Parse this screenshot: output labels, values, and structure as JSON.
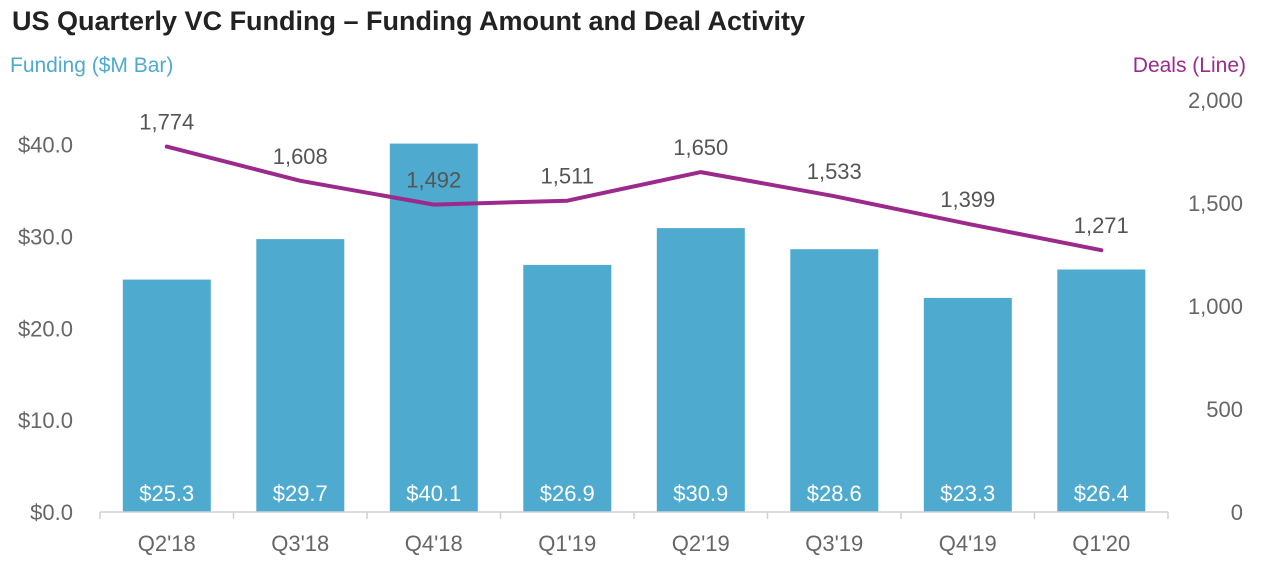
{
  "chart_data": {
    "type": "bar",
    "title": "US Quarterly VC Funding – Funding Amount and Deal Activity",
    "categories": [
      "Q2'18",
      "Q3'18",
      "Q4'18",
      "Q1'19",
      "Q2'19",
      "Q3'19",
      "Q4'19",
      "Q1'20"
    ],
    "series": [
      {
        "name": "Funding",
        "type": "bar",
        "axis": "left",
        "values": [
          25.3,
          29.7,
          40.1,
          26.9,
          30.9,
          28.6,
          23.3,
          26.4
        ],
        "value_labels": [
          "$25.3",
          "$29.7",
          "$40.1",
          "$26.9",
          "$30.9",
          "$28.6",
          "$23.3",
          "$26.4"
        ],
        "color": "#4eaacf"
      },
      {
        "name": "Deals",
        "type": "line",
        "axis": "right",
        "values": [
          1774,
          1608,
          1492,
          1511,
          1650,
          1533,
          1399,
          1271
        ],
        "value_labels": [
          "1,774",
          "1,608",
          "1,492",
          "1,511",
          "1,650",
          "1,533",
          "1,399",
          "1,271"
        ],
        "color": "#9c2a8c"
      }
    ],
    "ylabel_left": "Funding ($M Bar)",
    "ylabel_right": "Deals (Line)",
    "ylim_left": [
      0,
      45
    ],
    "ylim_right": [
      0,
      2000
    ],
    "left_ticks": [
      {
        "value": 0,
        "label": "$0.0"
      },
      {
        "value": 10,
        "label": "$10.0"
      },
      {
        "value": 20,
        "label": "$20.0"
      },
      {
        "value": 30,
        "label": "$30.0"
      },
      {
        "value": 40,
        "label": "$40.0"
      }
    ],
    "right_ticks": [
      {
        "value": 0,
        "label": "0"
      },
      {
        "value": 500,
        "label": "500"
      },
      {
        "value": 1000,
        "label": "1,000"
      },
      {
        "value": 1500,
        "label": "1,500"
      },
      {
        "value": 2000,
        "label": "2,000"
      }
    ],
    "colors": {
      "left_axis": "#4eaacf",
      "right_axis": "#9c2a8c",
      "tick_text": "#666666",
      "title": "#222222"
    },
    "grid": false,
    "legend": "none"
  }
}
